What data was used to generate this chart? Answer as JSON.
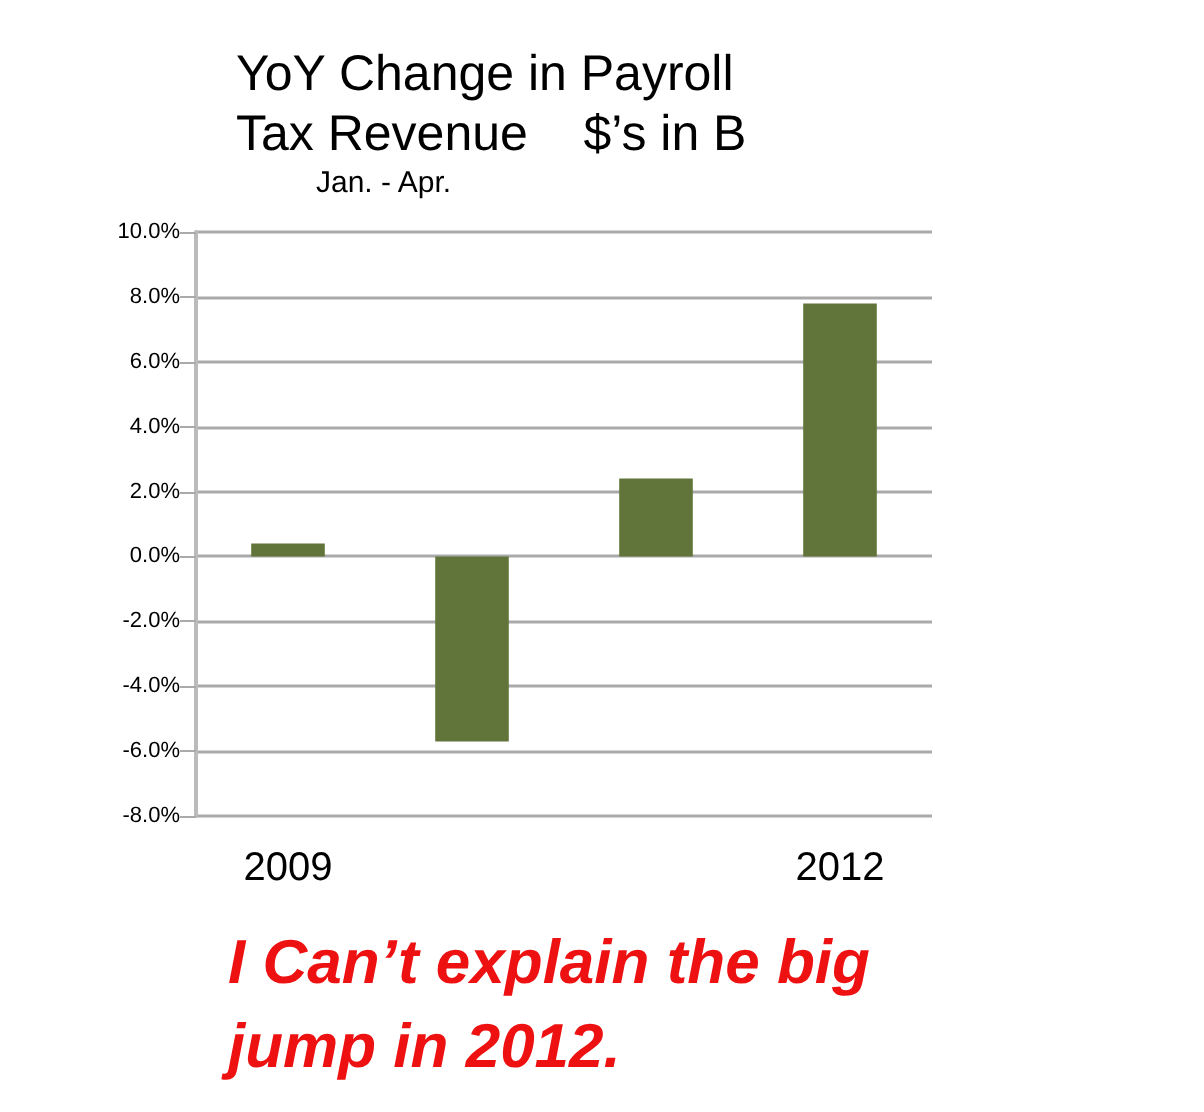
{
  "chart_data": {
    "type": "bar",
    "title": "YoY Change in Payroll\nTax Revenue    $’s in B",
    "subtitle": "Jan. - Apr.",
    "categories": [
      "2009",
      null,
      null,
      "2012"
    ],
    "values": [
      0.4,
      -5.7,
      2.4,
      7.8
    ],
    "color": "#61753a",
    "ylim": [
      -8,
      10
    ],
    "yticks": [
      {
        "value": -8,
        "label": "-8.0%"
      },
      {
        "value": -6,
        "label": "-6.0%"
      },
      {
        "value": -4,
        "label": "-4.0%"
      },
      {
        "value": -2,
        "label": "-2.0%"
      },
      {
        "value": 0,
        "label": "0.0%"
      },
      {
        "value": 2,
        "label": "2.0%"
      },
      {
        "value": 4,
        "label": "4.0%"
      },
      {
        "value": 6,
        "label": "6.0%"
      },
      {
        "value": 8,
        "label": "8.0%"
      },
      {
        "value": 10,
        "label": "10.0%"
      }
    ],
    "grid": "y",
    "annotations": [
      "I Can’t explain the big jump in 2012."
    ]
  }
}
